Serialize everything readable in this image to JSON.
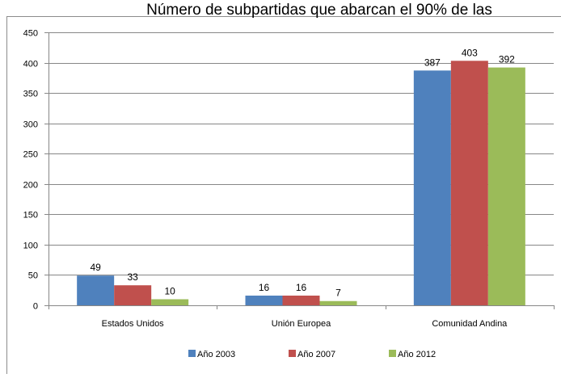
{
  "chart_data": {
    "type": "bar",
    "title": "Número de subpartidas que abarcan el 90% de las",
    "xlabel": "",
    "ylabel": "",
    "categories": [
      "Estados Unidos",
      "Unión Europea",
      "Comunidad Andina"
    ],
    "series": [
      {
        "name": "Año 2003",
        "values": [
          49,
          16,
          387
        ],
        "color": "#4F81BD"
      },
      {
        "name": "Año 2007",
        "values": [
          33,
          16,
          403
        ],
        "color": "#C0504D"
      },
      {
        "name": "Año 2012",
        "values": [
          10,
          7,
          392
        ],
        "color": "#9BBB59"
      }
    ],
    "ylim": [
      0,
      450
    ],
    "yticks": [
      0,
      50,
      100,
      150,
      200,
      250,
      300,
      350,
      400,
      450
    ],
    "grid": true,
    "legend_position": "bottom"
  }
}
